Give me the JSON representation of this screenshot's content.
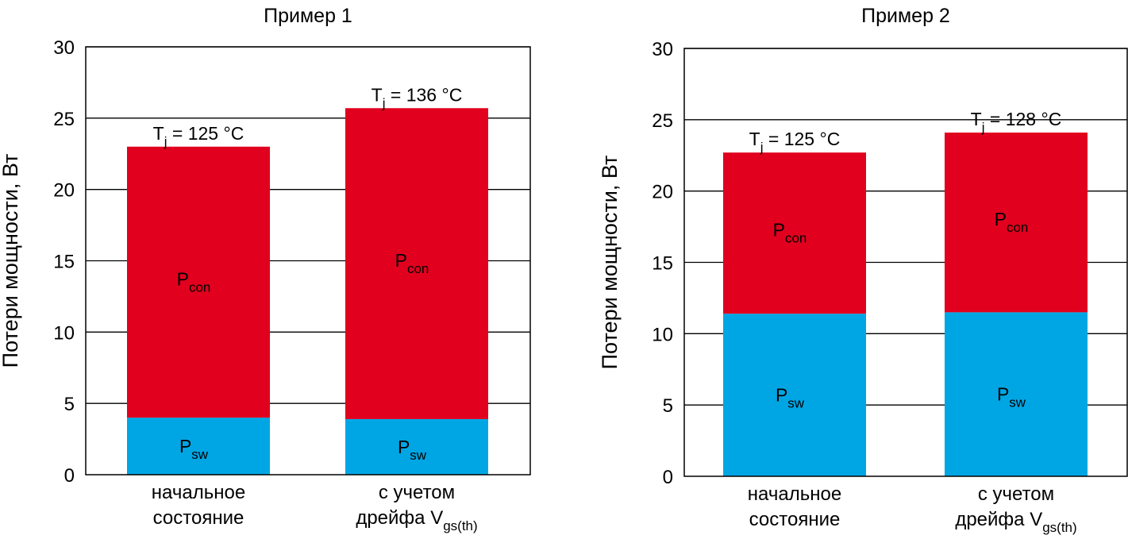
{
  "chart_data": [
    {
      "type": "bar",
      "stacked": true,
      "title": "Пример 1",
      "ylabel": "Потери мощности, Вт",
      "ylim": [
        0,
        30
      ],
      "yticks": [
        "0",
        "5",
        "10",
        "15",
        "20",
        "25",
        "30"
      ],
      "grid": true,
      "categories": [
        {
          "line1": "начальное",
          "line2": "состояние",
          "line2_sub": ""
        },
        {
          "line1": "с учетом",
          "line2": "дрейфа V",
          "line2_sub": "gs(th)"
        }
      ],
      "series": [
        {
          "main": "P",
          "sub": "sw",
          "color": "#00a6e4",
          "values": [
            4.0,
            3.9
          ]
        },
        {
          "main": "P",
          "sub": "con",
          "color": "#e1001e",
          "values": [
            19.0,
            21.8
          ]
        }
      ],
      "bar_top_labels": [
        {
          "prefix": "T",
          "sub": "j",
          "text": " = 125 °C"
        },
        {
          "prefix": "T",
          "sub": "j",
          "text": " = 136 °C"
        }
      ]
    },
    {
      "type": "bar",
      "stacked": true,
      "title": "Пример 2",
      "ylabel": "Потери мощности, Вт",
      "ylim": [
        0,
        30
      ],
      "yticks": [
        "0",
        "5",
        "10",
        "15",
        "20",
        "25",
        "30"
      ],
      "grid": true,
      "categories": [
        {
          "line1": "начальное",
          "line2": "состояние",
          "line2_sub": ""
        },
        {
          "line1": "с учетом",
          "line2": "дрейфа V",
          "line2_sub": "gs(th)"
        }
      ],
      "series": [
        {
          "main": "P",
          "sub": "sw",
          "color": "#00a6e4",
          "values": [
            11.4,
            11.5
          ]
        },
        {
          "main": "P",
          "sub": "con",
          "color": "#e1001e",
          "values": [
            11.3,
            12.6
          ]
        }
      ],
      "bar_top_labels": [
        {
          "prefix": "T",
          "sub": "j",
          "text": " = 125 °C"
        },
        {
          "prefix": "T",
          "sub": "j",
          "text": " = 128 °C"
        }
      ]
    }
  ]
}
